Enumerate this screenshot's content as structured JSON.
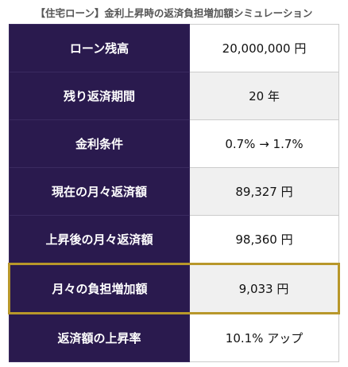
{
  "title": "【住宅ローン】金利上昇時の返済負担増加額シミュレーション",
  "table": {
    "rows": [
      [
        "ローン残高",
        "20,000,000 円"
      ],
      [
        "残り返済期間",
        "20 年"
      ],
      [
        "金利条件",
        "0.7% → 1.7%"
      ],
      [
        "現在の月々返済額",
        "89,327 円"
      ],
      [
        "上昇後の月々返済額",
        "98,360 円"
      ],
      [
        "月々の負担増加額",
        "9,033 円"
      ],
      [
        "返済額の上昇率",
        "10.1% アップ"
      ]
    ],
    "highlight_row": 5
  }
}
